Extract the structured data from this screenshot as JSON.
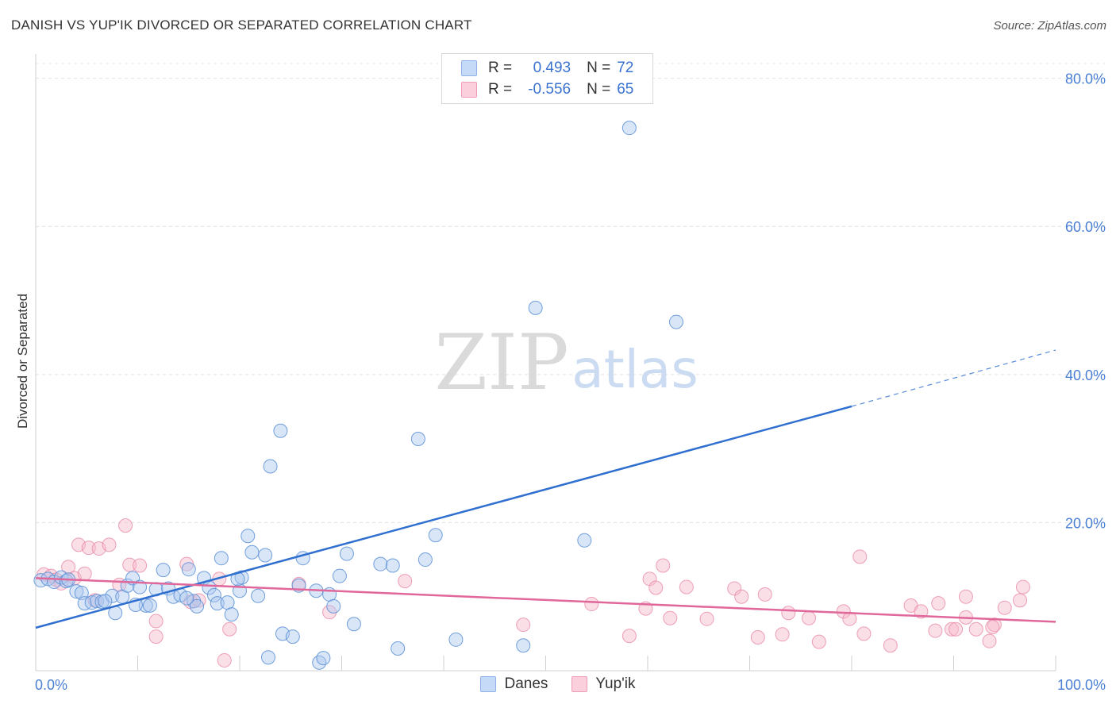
{
  "title": "DANISH VS YUP'IK DIVORCED OR SEPARATED CORRELATION CHART",
  "source": "Source: ZipAtlas.com",
  "watermark": {
    "zip": "ZIP",
    "atlas": "atlas"
  },
  "legend": {
    "rows": [
      {
        "r_label": "R =",
        "r_value": "0.493",
        "n_label": "N =",
        "n_value": "72",
        "color": "#aac8f0"
      },
      {
        "r_label": "R =",
        "r_value": "-0.556",
        "n_label": "N =",
        "n_value": "65",
        "color": "#f7b8ca"
      }
    ]
  },
  "bottom_legend": [
    "Danes",
    "Yup'ik"
  ],
  "chart_data": {
    "type": "scatter",
    "title": "DANISH VS YUP'IK DIVORCED OR SEPARATED CORRELATION CHART",
    "xlabel": "",
    "ylabel": "Divorced or Separated",
    "xlim": [
      0,
      100
    ],
    "ylim": [
      0,
      82
    ],
    "x_tick_labels": [
      "0.0%",
      "100.0%"
    ],
    "y_ticks": [
      20,
      40,
      60,
      80
    ],
    "y_tick_labels": [
      "20.0%",
      "40.0%",
      "60.0%",
      "80.0%"
    ],
    "grid": true,
    "legend_position": "top-center",
    "series": [
      {
        "name": "Danes",
        "color": "#5b8fd6",
        "fill": "#aac8f0",
        "line_color": "#2f6fd0",
        "trend": {
          "x0": 0,
          "y0": 5.8,
          "x1": 80,
          "y1": 35.7,
          "extend_to_x": 100,
          "extend_to_y": 43.3
        },
        "points": [
          [
            0.5,
            12.2
          ],
          [
            1.2,
            12.4
          ],
          [
            1.8,
            12.0
          ],
          [
            2.5,
            12.6
          ],
          [
            3.0,
            12.1
          ],
          [
            4.0,
            10.7
          ],
          [
            4.5,
            10.5
          ],
          [
            4.8,
            9.1
          ],
          [
            5.5,
            9.2
          ],
          [
            6.0,
            9.4
          ],
          [
            6.5,
            9.3
          ],
          [
            7.5,
            10.1
          ],
          [
            7.8,
            7.8
          ],
          [
            8.5,
            10.0
          ],
          [
            9.0,
            11.5
          ],
          [
            9.5,
            12.5
          ],
          [
            10.2,
            11.3
          ],
          [
            10.8,
            8.8
          ],
          [
            11.2,
            8.8
          ],
          [
            11.8,
            11.0
          ],
          [
            12.5,
            13.6
          ],
          [
            13.0,
            11.1
          ],
          [
            13.5,
            10.0
          ],
          [
            14.2,
            10.2
          ],
          [
            15.0,
            13.7
          ],
          [
            15.5,
            9.4
          ],
          [
            15.8,
            8.7
          ],
          [
            16.5,
            12.5
          ],
          [
            17.0,
            11.2
          ],
          [
            17.5,
            10.2
          ],
          [
            17.8,
            9.1
          ],
          [
            18.2,
            15.2
          ],
          [
            18.8,
            9.2
          ],
          [
            19.2,
            7.6
          ],
          [
            20.0,
            10.8
          ],
          [
            20.2,
            12.6
          ],
          [
            20.8,
            18.2
          ],
          [
            21.2,
            16.0
          ],
          [
            21.8,
            10.1
          ],
          [
            22.5,
            15.6
          ],
          [
            22.8,
            1.8
          ],
          [
            23.0,
            27.6
          ],
          [
            24.0,
            32.4
          ],
          [
            24.2,
            5.0
          ],
          [
            25.2,
            4.6
          ],
          [
            25.8,
            11.5
          ],
          [
            26.2,
            15.2
          ],
          [
            27.5,
            10.8
          ],
          [
            27.8,
            1.1
          ],
          [
            28.2,
            1.7
          ],
          [
            28.8,
            10.3
          ],
          [
            29.2,
            8.7
          ],
          [
            29.8,
            12.8
          ],
          [
            30.5,
            15.8
          ],
          [
            31.2,
            6.3
          ],
          [
            33.8,
            14.4
          ],
          [
            35.0,
            14.2
          ],
          [
            35.5,
            3.0
          ],
          [
            37.5,
            31.3
          ],
          [
            38.2,
            15.0
          ],
          [
            39.2,
            18.3
          ],
          [
            41.2,
            4.2
          ],
          [
            47.8,
            3.4
          ],
          [
            49.0,
            49.0
          ],
          [
            53.8,
            17.6
          ],
          [
            58.2,
            73.3
          ],
          [
            62.8,
            47.1
          ],
          [
            3.2,
            12.3
          ],
          [
            6.8,
            9.4
          ],
          [
            9.8,
            8.9
          ],
          [
            14.8,
            9.8
          ],
          [
            19.8,
            12.4
          ]
        ]
      },
      {
        "name": "Yup'ik",
        "color": "#e88aa8",
        "fill": "#f7b8ca",
        "line_color": "#e0679a",
        "trend": {
          "x0": 0,
          "y0": 12.5,
          "x1": 100,
          "y1": 6.6
        },
        "points": [
          [
            0.8,
            13.0
          ],
          [
            1.5,
            12.8
          ],
          [
            2.0,
            12.3
          ],
          [
            2.5,
            11.8
          ],
          [
            3.2,
            14.0
          ],
          [
            3.8,
            12.5
          ],
          [
            4.2,
            17.0
          ],
          [
            4.8,
            13.1
          ],
          [
            5.2,
            16.6
          ],
          [
            5.8,
            9.5
          ],
          [
            6.2,
            16.5
          ],
          [
            7.2,
            17.0
          ],
          [
            8.2,
            11.6
          ],
          [
            8.8,
            19.6
          ],
          [
            9.2,
            14.3
          ],
          [
            10.2,
            14.2
          ],
          [
            11.8,
            4.6
          ],
          [
            11.8,
            6.7
          ],
          [
            14.8,
            14.4
          ],
          [
            15.2,
            9.3
          ],
          [
            16.0,
            9.5
          ],
          [
            18.0,
            12.4
          ],
          [
            18.5,
            1.4
          ],
          [
            19.0,
            5.6
          ],
          [
            25.8,
            11.7
          ],
          [
            28.8,
            7.9
          ],
          [
            36.2,
            12.1
          ],
          [
            47.8,
            6.2
          ],
          [
            54.5,
            9.0
          ],
          [
            58.2,
            4.7
          ],
          [
            59.8,
            8.4
          ],
          [
            60.2,
            12.4
          ],
          [
            60.8,
            11.2
          ],
          [
            61.5,
            14.2
          ],
          [
            63.8,
            11.3
          ],
          [
            65.8,
            7.0
          ],
          [
            68.5,
            11.1
          ],
          [
            69.2,
            10.0
          ],
          [
            70.8,
            4.5
          ],
          [
            71.5,
            10.3
          ],
          [
            73.2,
            4.9
          ],
          [
            73.8,
            7.8
          ],
          [
            75.8,
            7.1
          ],
          [
            76.8,
            3.9
          ],
          [
            79.2,
            8.0
          ],
          [
            79.8,
            7.0
          ],
          [
            80.8,
            15.4
          ],
          [
            81.2,
            5.0
          ],
          [
            83.8,
            3.4
          ],
          [
            85.8,
            8.8
          ],
          [
            86.8,
            8.0
          ],
          [
            88.5,
            9.1
          ],
          [
            89.8,
            5.6
          ],
          [
            90.2,
            5.6
          ],
          [
            91.2,
            10.0
          ],
          [
            91.2,
            7.2
          ],
          [
            92.2,
            5.6
          ],
          [
            93.5,
            4.0
          ],
          [
            94.0,
            6.2
          ],
          [
            95.0,
            8.5
          ],
          [
            96.5,
            9.5
          ],
          [
            96.8,
            11.3
          ],
          [
            93.8,
            5.9
          ],
          [
            88.2,
            5.4
          ],
          [
            62.2,
            7.1
          ]
        ]
      }
    ]
  }
}
